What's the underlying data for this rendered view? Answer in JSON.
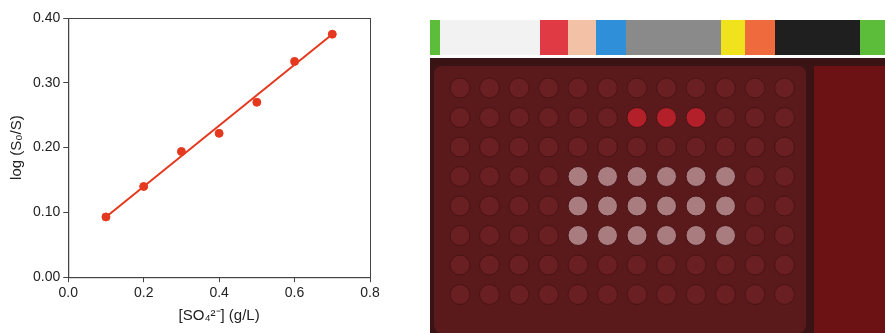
{
  "chart_data": {
    "type": "scatter",
    "x_label": "[SO₄²⁻] (g/L)",
    "y_label": "log (S₀/S)",
    "series": [
      {
        "type": "scatter",
        "color": "#e5391f",
        "marker": "circle",
        "x": [
          0.1,
          0.2,
          0.3,
          0.4,
          0.5,
          0.6,
          0.7
        ],
        "values": [
          0.093,
          0.14,
          0.194,
          0.222,
          0.27,
          0.333,
          0.375
        ]
      },
      {
        "type": "line",
        "color": "#e5391f",
        "line_style": "solid",
        "x": [
          0.1,
          0.7
        ],
        "values": [
          0.093,
          0.375
        ]
      }
    ],
    "xlim": [
      0,
      0.8
    ],
    "xticks": [
      {
        "value": 0,
        "label": "0.0"
      },
      0.2,
      0.4,
      0.6,
      0.8
    ],
    "ylim": [
      0,
      0.4
    ],
    "yticks": [
      {
        "value": 0,
        "label": "0.00"
      },
      {
        "value": 0.1,
        "label": "0.10"
      },
      {
        "value": 0.2,
        "label": "0.20"
      },
      {
        "value": 0.3,
        "label": "0.30"
      },
      {
        "value": 0.4,
        "label": "0.40"
      }
    ],
    "grid": false
  }
}
